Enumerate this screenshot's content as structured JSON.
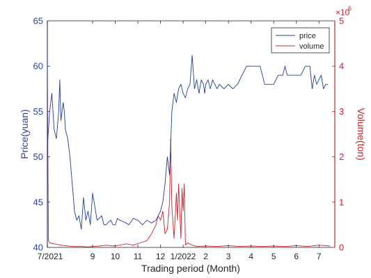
{
  "chart_data": {
    "type": "line",
    "xlabel": "Trading period (Month)",
    "ylabel_left": "Price(yuan)",
    "ylabel_right": "Volume(ton)",
    "right_axis_multiplier": "×10",
    "right_axis_exponent": "6",
    "x_range": [
      0,
      12.7
    ],
    "x_ticks": [
      {
        "x": 0,
        "label": "7/2021"
      },
      {
        "x": 2,
        "label": "9"
      },
      {
        "x": 3,
        "label": "10"
      },
      {
        "x": 4,
        "label": "11"
      },
      {
        "x": 5,
        "label": "12"
      },
      {
        "x": 6,
        "label": "1/2022"
      },
      {
        "x": 7,
        "label": "2"
      },
      {
        "x": 8,
        "label": "3"
      },
      {
        "x": 9,
        "label": "4"
      },
      {
        "x": 10,
        "label": "5"
      },
      {
        "x": 11,
        "label": "6"
      },
      {
        "x": 12,
        "label": "7"
      }
    ],
    "y_left": {
      "min": 40,
      "max": 65,
      "ticks": [
        40,
        45,
        50,
        55,
        60,
        65
      ]
    },
    "y_right": {
      "min": 0,
      "max": 5,
      "ticks": [
        0,
        1,
        2,
        3,
        4,
        5
      ]
    },
    "grid": false,
    "legend": "top-right",
    "colors": {
      "price": "#1f3c99",
      "volume": "#c0262d",
      "left_axis": "#2b3fa0",
      "right_axis": "#c0262d"
    },
    "series": [
      {
        "name": "price",
        "axis": "left",
        "x": [
          0,
          0.1,
          0.2,
          0.3,
          0.4,
          0.5,
          0.55,
          0.6,
          0.7,
          0.75,
          0.8,
          0.9,
          1.0,
          1.1,
          1.2,
          1.3,
          1.4,
          1.5,
          1.6,
          1.7,
          1.8,
          1.9,
          2.0,
          2.2,
          2.4,
          2.5,
          2.6,
          2.7,
          2.8,
          2.9,
          3.0,
          3.1,
          3.2,
          3.4,
          3.6,
          3.8,
          4.0,
          4.2,
          4.4,
          4.6,
          4.8,
          5.0,
          5.1,
          5.2,
          5.3,
          5.4,
          5.5,
          5.6,
          5.7,
          5.8,
          5.9,
          6.0,
          6.1,
          6.2,
          6.3,
          6.4,
          6.5,
          6.6,
          6.7,
          6.8,
          6.9,
          6.95,
          7.0,
          7.1,
          7.2,
          7.3,
          7.4,
          7.5,
          7.6,
          7.8,
          8.0,
          8.2,
          8.4,
          8.6,
          8.8,
          9.0,
          9.2,
          9.4,
          9.6,
          9.8,
          10.0,
          10.2,
          10.4,
          10.5,
          10.6,
          10.8,
          11.0,
          11.2,
          11.4,
          11.6,
          11.7,
          11.8,
          11.9,
          12.0,
          12.1,
          12.2,
          12.3,
          12.4
        ],
        "values": [
          51,
          55,
          57,
          53,
          52,
          55,
          58.5,
          54,
          56,
          55,
          53,
          52,
          50,
          47,
          44,
          43,
          43.5,
          42,
          45.5,
          43,
          44,
          42.5,
          46,
          43,
          43.5,
          42.5,
          42.5,
          42.8,
          43,
          42.5,
          42.5,
          43.2,
          43,
          42.8,
          42.5,
          43.2,
          43,
          42.5,
          43,
          42.7,
          43,
          44,
          45,
          47,
          50,
          48,
          55,
          57,
          56,
          57.5,
          58,
          57,
          56.5,
          57.5,
          58,
          61.2,
          57.5,
          58.5,
          57,
          58.5,
          58,
          57,
          58,
          58.5,
          57.5,
          58.5,
          58,
          57.5,
          58,
          57.5,
          58,
          57.5,
          58,
          59,
          60,
          60,
          60,
          60,
          58,
          58,
          58,
          59,
          59,
          60,
          59,
          59,
          59,
          59,
          60,
          60,
          57.5,
          59,
          58,
          58.5,
          59,
          57.5,
          58,
          58
        ]
      },
      {
        "name": "volume",
        "axis": "right",
        "x": [
          0,
          0.05,
          0.1,
          0.3,
          0.6,
          0.9,
          1.2,
          1.5,
          1.8,
          2.0,
          2.3,
          2.6,
          2.9,
          3.2,
          3.5,
          3.8,
          4.1,
          4.4,
          4.6,
          4.8,
          4.9,
          5.0,
          5.1,
          5.2,
          5.3,
          5.4,
          5.45,
          5.5,
          5.6,
          5.7,
          5.75,
          5.8,
          5.85,
          5.9,
          5.95,
          6.0,
          6.05,
          6.1,
          6.2,
          6.4,
          6.6,
          7.0,
          7.5,
          8.0,
          8.5,
          9.0,
          9.5,
          10.0,
          10.5,
          11.0,
          11.5,
          12.0,
          12.5
        ],
        "values": [
          4.0,
          0.15,
          0.1,
          0.08,
          0.05,
          0.03,
          0.02,
          0.02,
          0.01,
          0.02,
          0.03,
          0.05,
          0.03,
          0.05,
          0.08,
          0.05,
          0.1,
          0.15,
          0.3,
          0.5,
          0.7,
          0.6,
          0.8,
          0.3,
          0.4,
          1.0,
          2.4,
          0.9,
          0.2,
          1.2,
          0.6,
          1.4,
          0.8,
          0.2,
          1.3,
          0.8,
          1.4,
          0.05,
          0.1,
          0.05,
          0.02,
          0.03,
          0.02,
          0.04,
          0.02,
          0.03,
          0.02,
          0.03,
          0.02,
          0.04,
          0.02,
          0.05,
          0.03
        ]
      }
    ]
  }
}
